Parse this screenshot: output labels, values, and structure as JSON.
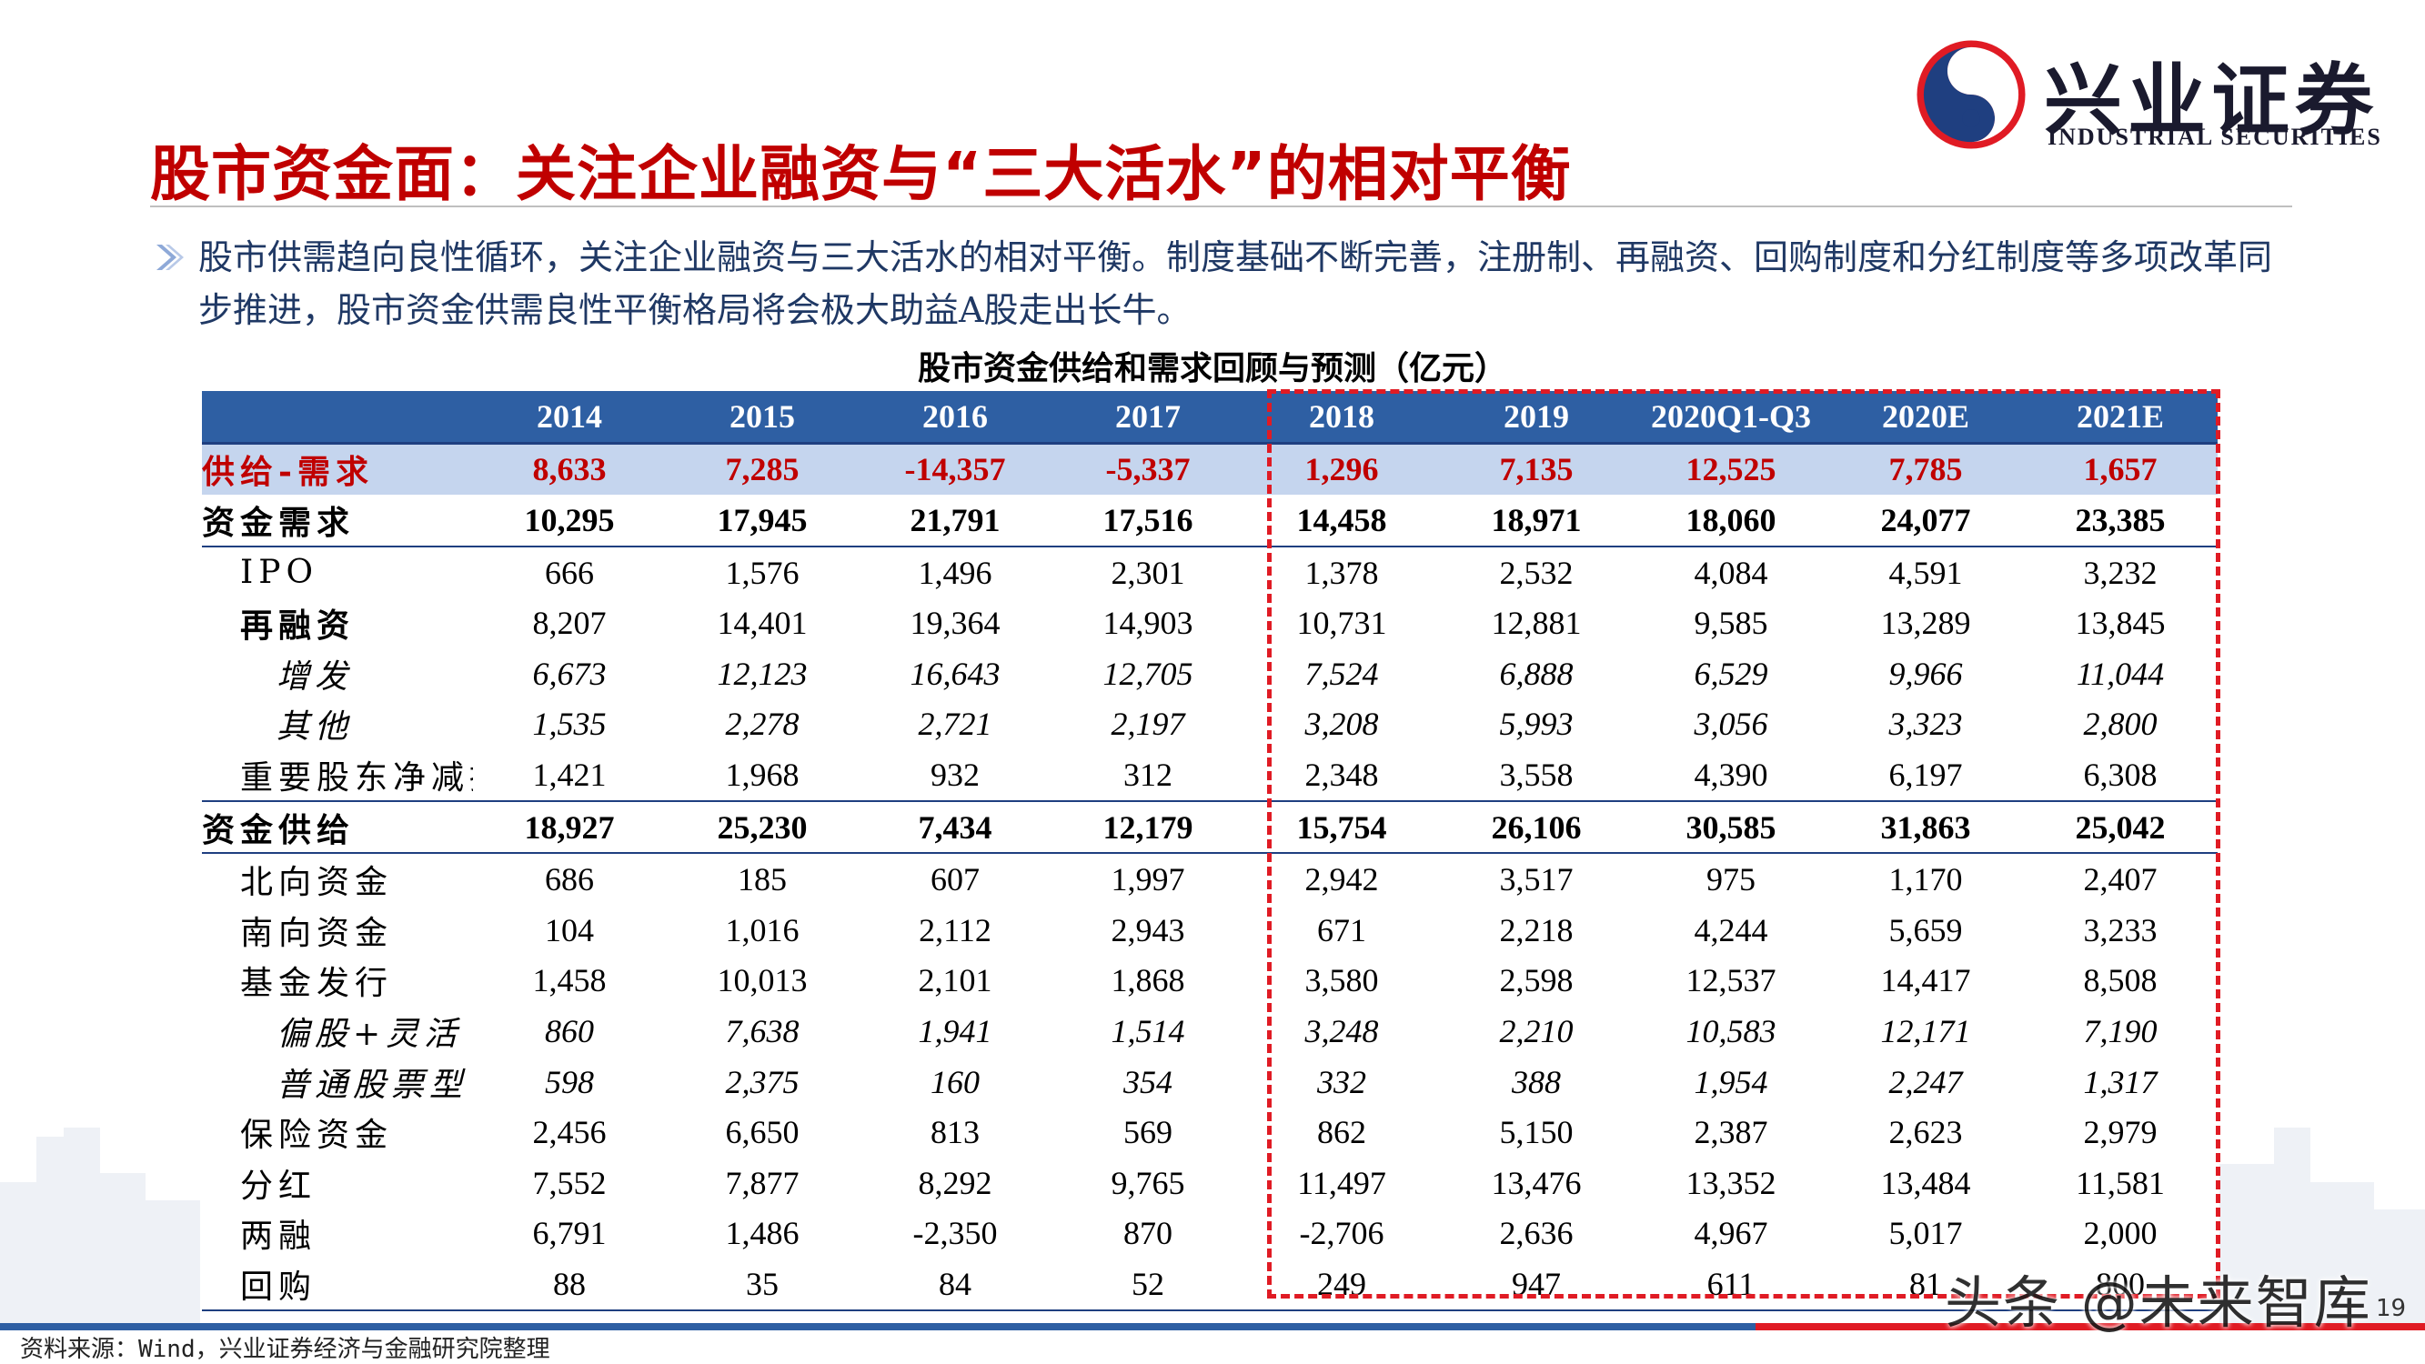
{
  "logo": {
    "name_cn": "兴业证券",
    "name_en": "INDUSTRIAL SECURITIES",
    "color_red": "#e01b24",
    "color_blue": "#1f3f80"
  },
  "title": "股市资金面：关注企业融资与“三大活水”的相对平衡",
  "bullet": "股市供需趋向良性循环，关注企业融资与三大活水的相对平衡。制度基础不断完善，注册制、再融资、回购制度和分红制度等多项改革同步推进，股市资金供需良性平衡格局将会极大助益A股走出长牛。",
  "table": {
    "title": "股市资金供给和需求回顾与预测（亿元）",
    "headers": [
      "",
      "2014",
      "2015",
      "2016",
      "2017",
      "2018",
      "2019",
      "2020Q1-Q3",
      "2020E",
      "2021E"
    ],
    "rows": [
      {
        "label": "供给-需求",
        "style": "net",
        "values": [
          "8,633",
          "7,285",
          "-14,357",
          "-5,337",
          "1,296",
          "7,135",
          "12,525",
          "7,785",
          "1,657"
        ]
      },
      {
        "label": "资金需求",
        "style": "bold",
        "values": [
          "10,295",
          "17,945",
          "21,791",
          "17,516",
          "14,458",
          "18,971",
          "18,060",
          "24,077",
          "23,385"
        ]
      },
      {
        "label": "IPO",
        "style": "sub1",
        "values": [
          "666",
          "1,576",
          "1,496",
          "2,301",
          "1,378",
          "2,532",
          "4,084",
          "4,591",
          "3,232"
        ]
      },
      {
        "label": "再融资",
        "style": "sub1b",
        "values": [
          "8,207",
          "14,401",
          "19,364",
          "14,903",
          "10,731",
          "12,881",
          "9,585",
          "13,289",
          "13,845"
        ]
      },
      {
        "label": "增发",
        "style": "sub2",
        "values": [
          "6,673",
          "12,123",
          "16,643",
          "12,705",
          "7,524",
          "6,888",
          "6,529",
          "9,966",
          "11,044"
        ]
      },
      {
        "label": "其他",
        "style": "sub2",
        "values": [
          "1,535",
          "2,278",
          "2,721",
          "2,197",
          "3,208",
          "5,993",
          "3,056",
          "3,323",
          "2,800"
        ]
      },
      {
        "label": "重要股东净减持",
        "style": "sub1",
        "values": [
          "1,421",
          "1,968",
          "932",
          "312",
          "2,348",
          "3,558",
          "4,390",
          "6,197",
          "6,308"
        ]
      },
      {
        "label": "资金供给",
        "style": "bold",
        "values": [
          "18,927",
          "25,230",
          "7,434",
          "12,179",
          "15,754",
          "26,106",
          "30,585",
          "31,863",
          "25,042"
        ]
      },
      {
        "label": "北向资金",
        "style": "sub1",
        "values": [
          "686",
          "185",
          "607",
          "1,997",
          "2,942",
          "3,517",
          "975",
          "1,170",
          "2,407"
        ]
      },
      {
        "label": "南向资金",
        "style": "sub1",
        "values": [
          "104",
          "1,016",
          "2,112",
          "2,943",
          "671",
          "2,218",
          "4,244",
          "5,659",
          "3,233"
        ]
      },
      {
        "label": "基金发行",
        "style": "sub1",
        "values": [
          "1,458",
          "10,013",
          "2,101",
          "1,868",
          "3,580",
          "2,598",
          "12,537",
          "14,417",
          "8,508"
        ]
      },
      {
        "label": "偏股+灵活",
        "style": "sub2",
        "values": [
          "860",
          "7,638",
          "1,941",
          "1,514",
          "3,248",
          "2,210",
          "10,583",
          "12,171",
          "7,190"
        ]
      },
      {
        "label": "普通股票型",
        "style": "sub2",
        "values": [
          "598",
          "2,375",
          "160",
          "354",
          "332",
          "388",
          "1,954",
          "2,247",
          "1,317"
        ]
      },
      {
        "label": "保险资金",
        "style": "sub1",
        "values": [
          "2,456",
          "6,650",
          "813",
          "569",
          "862",
          "5,150",
          "2,387",
          "2,623",
          "2,979"
        ]
      },
      {
        "label": "分红",
        "style": "sub1",
        "values": [
          "7,552",
          "7,877",
          "8,292",
          "9,765",
          "11,497",
          "13,476",
          "13,352",
          "13,484",
          "11,581"
        ]
      },
      {
        "label": "两融",
        "style": "sub1",
        "values": [
          "6,791",
          "1,486",
          "-2,350",
          "870",
          "-2,706",
          "2,636",
          "4,967",
          "5,017",
          "2,000"
        ]
      },
      {
        "label": "回购",
        "style": "sub1",
        "values": [
          "88",
          "35",
          "84",
          "52",
          "249",
          "947",
          "611",
          "81",
          "800"
        ]
      }
    ]
  },
  "source": "资料来源：Wind，兴业证券经济与金融研究院整理",
  "page_number": "19",
  "watermark": "头条 @未来智库"
}
